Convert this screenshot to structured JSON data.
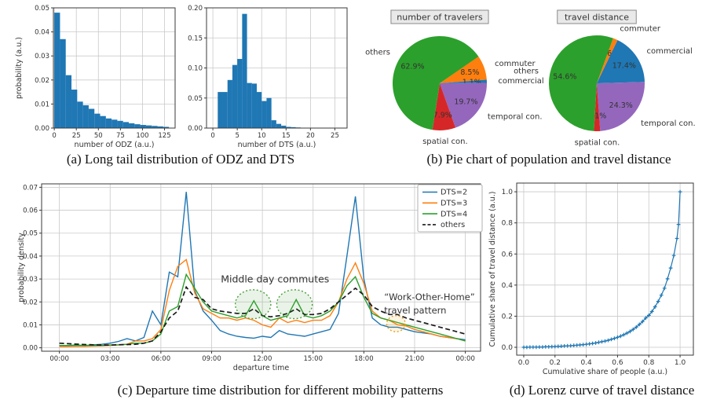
{
  "captions": {
    "a": "(a) Long tail distribution of ODZ and DTS",
    "b": "(b) Pie chart of population and travel distance",
    "c": "(c) Departure time distribution for different mobility patterns",
    "d": "(d) Lorenz curve of travel distance"
  },
  "colors": {
    "blue": "#1f77b4",
    "orange": "#ff7f0e",
    "green": "#2ca02c",
    "red": "#d62728",
    "purple": "#9467bd",
    "black": "#1a1a1a",
    "grid": "#c9c9c9",
    "spine": "#3a3a3a",
    "annotation_green": "#3d9a3d",
    "annotation_orange": "#cf5f1f"
  },
  "chart_data": [
    {
      "id": "odz-histogram",
      "type": "bar",
      "xlabel": "number of ODZ (a.u.)",
      "ylabel": "probability (a.u.)",
      "bin_start": 0,
      "bin_width": 6.5,
      "values": [
        0.048,
        0.037,
        0.022,
        0.016,
        0.011,
        0.0095,
        0.008,
        0.006,
        0.005,
        0.004,
        0.0035,
        0.003,
        0.0025,
        0.002,
        0.0016,
        0.0013,
        0.0011,
        0.0009,
        0.0007,
        0.0005
      ],
      "xtick_vals": [
        0,
        25,
        50,
        75,
        100,
        125
      ],
      "xtick_labels": [
        "0",
        "25",
        "50",
        "75",
        "100",
        "125"
      ],
      "ytick_vals": [
        0,
        0.01,
        0.02,
        0.03,
        0.04,
        0.05
      ],
      "ytick_labels": [
        "0.00",
        "0.01",
        "0.02",
        "0.03",
        "0.04",
        "0.05"
      ],
      "xlim": [
        -1,
        137
      ],
      "ylim": [
        0,
        0.05
      ],
      "color": "blue"
    },
    {
      "id": "dts-histogram",
      "type": "bar",
      "xlabel": "number of DTS (a.u.)",
      "ylabel": "",
      "bin_start": 1,
      "bin_width": 1,
      "values": [
        0.06,
        0.06,
        0.08,
        0.105,
        0.115,
        0.19,
        0.075,
        0.074,
        0.06,
        0.045,
        0.05,
        0.013,
        0.007,
        0.004,
        0.002,
        0.0015,
        0.001
      ],
      "xtick_vals": [
        0,
        5,
        10,
        15,
        20,
        25
      ],
      "xtick_labels": [
        "0",
        "5",
        "10",
        "15",
        "20",
        "25"
      ],
      "ytick_vals": [
        0,
        0.05,
        0.1,
        0.15,
        0.2
      ],
      "ytick_labels": [
        "0.00",
        "0.05",
        "0.10",
        "0.15",
        "0.20"
      ],
      "xlim": [
        -1.3,
        27.5
      ],
      "ylim": [
        0,
        0.2
      ],
      "color": "blue"
    },
    {
      "id": "travelers-pie",
      "type": "pie",
      "title": "number of travelers",
      "start_angle": 55,
      "slices": [
        {
          "label": "commuter",
          "pct": 8.5,
          "pct_label": "8.5%",
          "color": "orange"
        },
        {
          "label": "commercial",
          "pct": 1.1,
          "pct_label": "1.1%",
          "color": "blue"
        },
        {
          "label": "temporal con.",
          "pct": 19.7,
          "pct_label": "19.7%",
          "color": "purple"
        },
        {
          "label": "spatial con.",
          "pct": 7.9,
          "pct_label": "7.9%",
          "color": "red"
        },
        {
          "label": "others",
          "pct": 62.9,
          "pct_label": "62.9%",
          "color": "green"
        }
      ]
    },
    {
      "id": "distance-pie",
      "type": "pie",
      "title": "travel distance",
      "start_angle": 20,
      "slices": [
        {
          "label": "commuter",
          "pct": 1.6,
          "pct_label": "1.6%",
          "color": "orange"
        },
        {
          "label": "commercial",
          "pct": 17.4,
          "pct_label": "17.4%",
          "color": "blue"
        },
        {
          "label": "temporal con.",
          "pct": 24.3,
          "pct_label": "24.3%",
          "color": "purple"
        },
        {
          "label": "spatial con.",
          "pct": 2.1,
          "pct_label": "2.1%",
          "color": "red"
        },
        {
          "label": "others",
          "pct": 54.6,
          "pct_label": "54.6%",
          "color": "green"
        }
      ]
    },
    {
      "id": "departure-time",
      "type": "line",
      "xlabel": "departure time",
      "ylabel": "probability density",
      "x_step_hours": 0.5,
      "xtick_vals": [
        0,
        3,
        6,
        9,
        12,
        15,
        18,
        21,
        24
      ],
      "xtick_labels": [
        "00:00",
        "03:00",
        "06:00",
        "09:00",
        "12:00",
        "15:00",
        "18:00",
        "21:00",
        "00:00"
      ],
      "ytick_vals": [
        0,
        0.01,
        0.02,
        0.03,
        0.04,
        0.05,
        0.06,
        0.07
      ],
      "ytick_labels": [
        "0.00",
        "0.01",
        "0.02",
        "0.03",
        "0.04",
        "0.05",
        "0.06",
        "0.07"
      ],
      "xlim": [
        -1.05,
        24.9
      ],
      "ylim": [
        -0.0015,
        0.0715
      ],
      "legend": [
        "DTS=2",
        "DTS=3",
        "DTS=4",
        "others"
      ],
      "series": [
        {
          "name": "DTS=2",
          "color": "blue",
          "dash": null,
          "values": [
            0.001,
            0.001,
            0.0012,
            0.001,
            0.0013,
            0.0015,
            0.002,
            0.0028,
            0.004,
            0.003,
            0.0045,
            0.016,
            0.01,
            0.033,
            0.031,
            0.068,
            0.025,
            0.016,
            0.012,
            0.0075,
            0.006,
            0.005,
            0.0045,
            0.0042,
            0.005,
            0.0045,
            0.0075,
            0.006,
            0.0055,
            0.005,
            0.006,
            0.007,
            0.008,
            0.015,
            0.04,
            0.066,
            0.03,
            0.013,
            0.01,
            0.009,
            0.009,
            0.008,
            0.007,
            0.0065,
            0.006,
            0.005,
            0.0045,
            0.004,
            0.0035
          ]
        },
        {
          "name": "DTS=3",
          "color": "orange",
          "dash": null,
          "values": [
            0.0005,
            0.0005,
            0.0006,
            0.0006,
            0.0007,
            0.0008,
            0.001,
            0.0012,
            0.0015,
            0.003,
            0.003,
            0.004,
            0.008,
            0.025,
            0.0355,
            0.0385,
            0.024,
            0.017,
            0.015,
            0.013,
            0.013,
            0.012,
            0.013,
            0.012,
            0.01,
            0.009,
            0.013,
            0.011,
            0.012,
            0.011,
            0.012,
            0.012,
            0.014,
            0.02,
            0.03,
            0.037,
            0.028,
            0.016,
            0.013,
            0.012,
            0.01,
            0.0095,
            0.008,
            0.007,
            0.006,
            0.005,
            0.0045,
            0.004,
            0.003
          ]
        },
        {
          "name": "DTS=4",
          "color": "green",
          "dash": null,
          "values": [
            0.001,
            0.001,
            0.001,
            0.001,
            0.001,
            0.001,
            0.0012,
            0.0013,
            0.0015,
            0.002,
            0.002,
            0.003,
            0.006,
            0.016,
            0.018,
            0.032,
            0.026,
            0.02,
            0.016,
            0.015,
            0.014,
            0.013,
            0.014,
            0.0205,
            0.014,
            0.012,
            0.013,
            0.014,
            0.021,
            0.014,
            0.013,
            0.014,
            0.016,
            0.02,
            0.027,
            0.031,
            0.022,
            0.015,
            0.013,
            0.012,
            0.011,
            0.01,
            0.009,
            0.008,
            0.007,
            0.006,
            0.005,
            0.004,
            0.003
          ]
        },
        {
          "name": "others",
          "color": "black",
          "dash": "6,3.5",
          "values": [
            0.002,
            0.0018,
            0.0016,
            0.0014,
            0.0013,
            0.0012,
            0.0012,
            0.0013,
            0.0014,
            0.0015,
            0.002,
            0.003,
            0.007,
            0.013,
            0.016,
            0.0265,
            0.022,
            0.021,
            0.017,
            0.016,
            0.0155,
            0.015,
            0.015,
            0.017,
            0.014,
            0.0135,
            0.014,
            0.015,
            0.017,
            0.0145,
            0.0145,
            0.015,
            0.017,
            0.02,
            0.023,
            0.026,
            0.023,
            0.018,
            0.016,
            0.0145,
            0.0145,
            0.013,
            0.012,
            0.011,
            0.01,
            0.009,
            0.008,
            0.007,
            0.006
          ]
        }
      ],
      "annotations": [
        {
          "text": "Middle day commutes",
          "t": 12.75,
          "y": 0.0285,
          "anchor": "middle",
          "color": "annotation_green",
          "size": 12.5
        },
        {
          "text": "“Work-Other-Home”",
          "t": 19.2,
          "y": 0.0208,
          "anchor": "start",
          "color": "annotation_orange",
          "size": 11.5
        },
        {
          "text": "travel pattern",
          "t": 19.2,
          "y": 0.015,
          "anchor": "start",
          "color": "annotation_orange",
          "size": 11.5
        }
      ],
      "highlight_ellipses": [
        {
          "t": 11.45,
          "y": 0.019,
          "rt": 1.05,
          "ry": 0.0063,
          "color": "#4aa03c"
        },
        {
          "t": 13.9,
          "y": 0.019,
          "rt": 1.05,
          "ry": 0.0063,
          "color": "#4aa03c"
        },
        {
          "t": 19.9,
          "y": 0.0105,
          "rt": 0.55,
          "ry": 0.0035,
          "color": "#e3a31e"
        }
      ]
    },
    {
      "id": "lorenz-curve",
      "type": "scatter-line",
      "xlabel": "Cumulative share of people (a.u.)",
      "ylabel": "Cumulative share of travel distance (a.u.)",
      "marker": "plus",
      "color": "blue",
      "xtick_vals": [
        0,
        0.2,
        0.4,
        0.6,
        0.8,
        1.0
      ],
      "xtick_labels": [
        "0.0",
        "0.2",
        "0.4",
        "0.6",
        "0.8",
        "1.0"
      ],
      "ytick_vals": [
        0,
        0.2,
        0.4,
        0.6,
        0.8,
        1.0
      ],
      "ytick_labels": [
        "0.0",
        "0.2",
        "0.4",
        "0.6",
        "0.8",
        "1.0"
      ],
      "xlim": [
        -0.045,
        1.085
      ],
      "ylim": [
        -0.0505,
        1.056
      ],
      "x": [
        0.0,
        0.02,
        0.04,
        0.06,
        0.08,
        0.1,
        0.12,
        0.14,
        0.16,
        0.18,
        0.2,
        0.22,
        0.24,
        0.26,
        0.28,
        0.3,
        0.32,
        0.34,
        0.36,
        0.38,
        0.4,
        0.42,
        0.44,
        0.46,
        0.48,
        0.5,
        0.52,
        0.54,
        0.56,
        0.58,
        0.6,
        0.62,
        0.64,
        0.66,
        0.68,
        0.7,
        0.72,
        0.74,
        0.76,
        0.78,
        0.8,
        0.82,
        0.84,
        0.86,
        0.88,
        0.9,
        0.92,
        0.94,
        0.96,
        0.98,
        0.99,
        1.0
      ],
      "y": [
        0.0,
        0.0,
        0.001,
        0.001,
        0.001,
        0.002,
        0.002,
        0.003,
        0.003,
        0.004,
        0.005,
        0.006,
        0.007,
        0.008,
        0.009,
        0.01,
        0.012,
        0.013,
        0.015,
        0.017,
        0.019,
        0.022,
        0.025,
        0.028,
        0.032,
        0.036,
        0.04,
        0.045,
        0.051,
        0.057,
        0.064,
        0.072,
        0.081,
        0.091,
        0.102,
        0.115,
        0.13,
        0.147,
        0.166,
        0.188,
        0.205,
        0.23,
        0.26,
        0.295,
        0.335,
        0.38,
        0.44,
        0.51,
        0.59,
        0.7,
        0.79,
        1.0
      ]
    }
  ]
}
